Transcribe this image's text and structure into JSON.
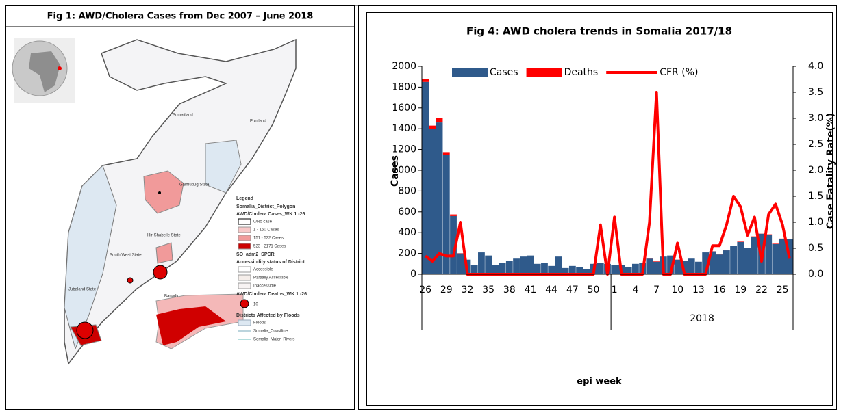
{
  "map": {
    "title": "Fig 1: AWD/Cholera Cases from Dec 2007 – June 2018",
    "regions": [
      "Somaliland",
      "Puntland",
      "Galmudug State",
      "Hir-Shabelle State",
      "South West State",
      "Jubaland State",
      "Banadir"
    ],
    "legend": {
      "title": "Legend",
      "layer1": "Somalia_District_Polygon",
      "cases_title": "AWD/Cholera Cases_WK 1 -26",
      "cases_classes": [
        "0/No case",
        "1  -  150  Cases",
        "151  -  522 Cases",
        "523 - 2171 Cases"
      ],
      "layer2": "SO_adm2_SPCR",
      "access_title": "Accessibility status of District",
      "access_classes": [
        "Accessible",
        "Partially Accessible",
        "Inaccessible"
      ],
      "deaths_title": "AWD/Cholera Deaths_WK 1 -26",
      "deaths_size": "10",
      "floods_title": "Districts Affected by Floods",
      "floods_items": [
        "Floods",
        "Somalia_Coastline",
        "Somalia_Major_Rivers"
      ]
    }
  },
  "chart_data": {
    "type": "bar",
    "title": "Fig 4: AWD cholera trends in Somalia 2017/18",
    "y_label": "Cases",
    "y2_label": "Case Fatality Rate(%)",
    "x_label": "epi week",
    "x_group_label": "2018",
    "categories": [
      "26",
      null,
      null,
      "29",
      null,
      null,
      "32",
      null,
      null,
      "35",
      null,
      null,
      "38",
      null,
      null,
      "41",
      null,
      null,
      "44",
      null,
      null,
      "47",
      null,
      null,
      "50",
      null,
      null,
      "1",
      null,
      null,
      "4",
      null,
      null,
      "7",
      null,
      null,
      "10",
      null,
      null,
      "13",
      null,
      null,
      "16",
      null,
      null,
      "19",
      null,
      null,
      "22",
      null,
      null,
      "25",
      null
    ],
    "ylim": [
      0,
      2000
    ],
    "yticks": [
      0,
      200,
      400,
      600,
      800,
      1000,
      1200,
      1400,
      1600,
      1800,
      2000
    ],
    "y2lim": [
      0,
      4
    ],
    "y2ticks": [
      {
        "value": 0,
        "label": "0.0"
      },
      {
        "value": 0.5,
        "label": "0.5"
      },
      {
        "value": 1,
        "label": "1.0"
      },
      {
        "value": 1.5,
        "label": "1.5"
      },
      {
        "value": 2,
        "label": "2.0"
      },
      {
        "value": 2.5,
        "label": "2.5"
      },
      {
        "value": 3,
        "label": "3.0"
      },
      {
        "value": 3.5,
        "label": "3.5"
      },
      {
        "value": 4,
        "label": "4.0"
      }
    ],
    "legend": "top",
    "series": [
      {
        "name": "Cases",
        "color": "#2f5a8b",
        "values": [
          1850,
          1400,
          1460,
          1150,
          560,
          200,
          140,
          90,
          210,
          180,
          90,
          110,
          130,
          150,
          170,
          180,
          100,
          110,
          80,
          170,
          60,
          80,
          70,
          50,
          100,
          110,
          100,
          90,
          90,
          70,
          100,
          110,
          150,
          120,
          170,
          180,
          140,
          130,
          150,
          120,
          210,
          220,
          190,
          230,
          270,
          310,
          250,
          360,
          390,
          380,
          290,
          340,
          340
        ]
      },
      {
        "name": "Deaths",
        "color": "#ff0000",
        "values": [
          25,
          30,
          40,
          25,
          15,
          2,
          0,
          0,
          0,
          0,
          0,
          0,
          0,
          0,
          0,
          0,
          0,
          0,
          0,
          0,
          0,
          0,
          0,
          0,
          0,
          1,
          0,
          1,
          0,
          0,
          0,
          0,
          1,
          4,
          0,
          0,
          1,
          0,
          0,
          0,
          0,
          1,
          1,
          2,
          4,
          4,
          2,
          4,
          1,
          4,
          4,
          3,
          1
        ]
      },
      {
        "name": "CFR (%)",
        "color": "#ff0000",
        "axis": "y2",
        "values": [
          0.35,
          0.25,
          0.4,
          0.35,
          0.35,
          1.0,
          0,
          0,
          0,
          0,
          0,
          0,
          0,
          0,
          0,
          0,
          0,
          0,
          0,
          0,
          0,
          0,
          0,
          0,
          0,
          0.95,
          0,
          1.1,
          0,
          0,
          0,
          0,
          1.0,
          3.5,
          0,
          0,
          0.6,
          0,
          0,
          0,
          0,
          0.55,
          0.55,
          0.95,
          1.5,
          1.3,
          0.75,
          1.1,
          0.25,
          1.15,
          1.35,
          0.95,
          0.3
        ]
      }
    ]
  }
}
